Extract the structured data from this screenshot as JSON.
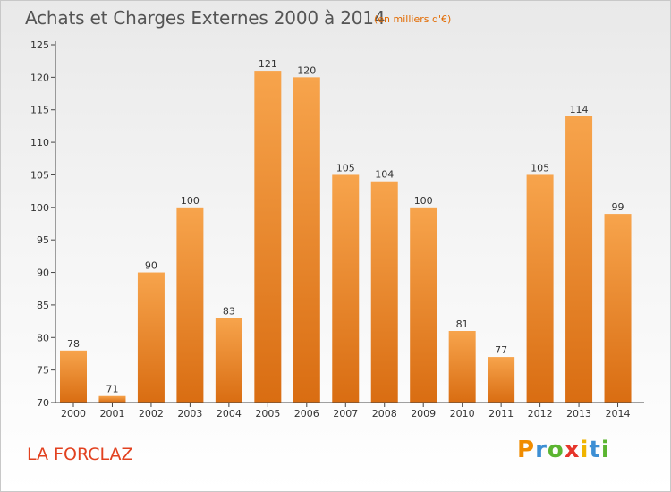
{
  "header": {
    "title": "Achats et Charges Externes 2000 à 2014",
    "unit_note": "(en milliers d'€)"
  },
  "footer": {
    "place": "LA FORCLAZ",
    "logo_text": "Proxiti"
  },
  "colors": {
    "bar_light": "#f7a44c",
    "bar_dark": "#d96d12",
    "accent": "#e26a00",
    "place_text": "#e2411f"
  },
  "chart_data": {
    "type": "bar",
    "title": "Achats et Charges Externes 2000 à 2014",
    "subtitle": "(en milliers d'€)",
    "xlabel": "",
    "ylabel": "",
    "categories": [
      "2000",
      "2001",
      "2002",
      "2003",
      "2004",
      "2005",
      "2006",
      "2007",
      "2008",
      "2009",
      "2010",
      "2011",
      "2012",
      "2013",
      "2014"
    ],
    "values": [
      78,
      71,
      90,
      100,
      83,
      121,
      120,
      105,
      104,
      100,
      81,
      77,
      105,
      114,
      99
    ],
    "ylim": [
      70,
      125
    ],
    "yticks": [
      70,
      75,
      80,
      85,
      90,
      95,
      100,
      105,
      110,
      115,
      120,
      125
    ],
    "grid": false,
    "legend": "none"
  }
}
